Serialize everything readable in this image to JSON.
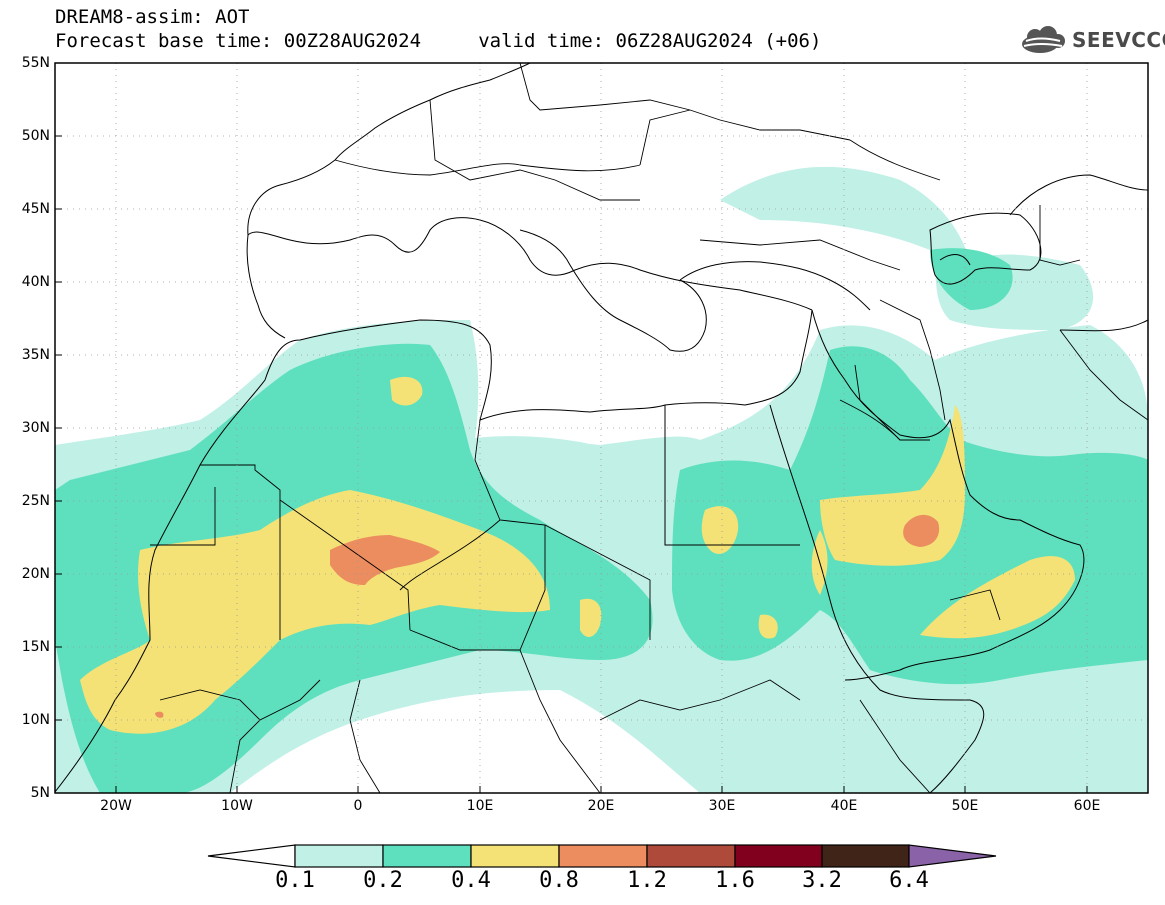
{
  "header": {
    "title": "DREAM8-assim: AOT",
    "subtitle": "Forecast base time: 00Z28AUG2024     valid time: 06Z28AUG2024 (+06)"
  },
  "logo": {
    "text": "SEEVCCC",
    "icon": "cloud-icon"
  },
  "map": {
    "lat_labels": [
      "55N",
      "50N",
      "45N",
      "40N",
      "35N",
      "30N",
      "25N",
      "20N",
      "15N",
      "10N",
      "5N"
    ],
    "lon_labels": [
      "20W",
      "10W",
      "0",
      "10E",
      "20E",
      "30E",
      "40E",
      "50E",
      "60E"
    ]
  },
  "legend": {
    "levels": [
      "0.1",
      "0.2",
      "0.4",
      "0.8",
      "1.2",
      "1.6",
      "3.2",
      "6.4"
    ],
    "colors": [
      "#c0f0e6",
      "#5ee0be",
      "#f4e276",
      "#ec8d60",
      "#ad4a3a",
      "#80001e",
      "#402418",
      "#8a62a8"
    ]
  },
  "colors": {
    "aot_0_1": "#c0f0e6",
    "aot_0_2": "#5ee0be",
    "aot_0_4": "#f4e276",
    "aot_0_8": "#ec8d60",
    "aot_1_2": "#ad4a3a"
  }
}
